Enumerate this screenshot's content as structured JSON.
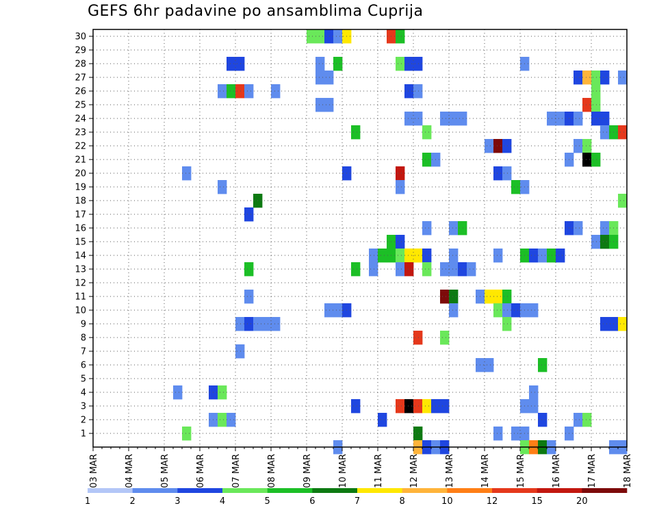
{
  "chart_data": {
    "type": "heatmap",
    "title": "GEFS 6hr padavine po ansamblima Cuprija",
    "xlabel": "",
    "ylabel": "",
    "x_ticks": [
      "03 MAR",
      "04 MAR",
      "05 MAR",
      "06 MAR",
      "07 MAR",
      "08 MAR",
      "09 MAR",
      "10 MAR",
      "11 MAR",
      "12 MAR",
      "13 MAR",
      "14 MAR",
      "15 MAR",
      "16 MAR",
      "17 MAR",
      "18 MAR"
    ],
    "y_ticks": [
      "1",
      "2",
      "3",
      "4",
      "5",
      "6",
      "7",
      "8",
      "9",
      "10",
      "11",
      "12",
      "13",
      "14",
      "15",
      "16",
      "17",
      "18",
      "19",
      "20",
      "21",
      "22",
      "23",
      "24",
      "25",
      "26",
      "27",
      "28",
      "29",
      "30"
    ],
    "xlim": [
      0,
      60
    ],
    "ylim": [
      0,
      30
    ],
    "grid": true,
    "legend": {
      "position": "bottom",
      "labels": [
        "1",
        "2",
        "3",
        "4",
        "5",
        "6",
        "7",
        "8",
        "10",
        "12",
        "15",
        "20"
      ],
      "colors": [
        "#b3c6f7",
        "#5f8cee",
        "#1f46e0",
        "#6ae85a",
        "#1cbf26",
        "#0d7a12",
        "#ffe800",
        "#ffb43a",
        "#ff7f16",
        "#e5381b",
        "#c2170f",
        "#7d0a0a"
      ]
    },
    "cells": [
      [
        24,
        30,
        3
      ],
      [
        25,
        30,
        3
      ],
      [
        26,
        30,
        2
      ],
      [
        27,
        30,
        1
      ],
      [
        28,
        30,
        6
      ],
      [
        33,
        30,
        9
      ],
      [
        34,
        30,
        4
      ],
      [
        15,
        28,
        2
      ],
      [
        16,
        28,
        2
      ],
      [
        25,
        28,
        1
      ],
      [
        27,
        28,
        4
      ],
      [
        34,
        28,
        3
      ],
      [
        35,
        28,
        2
      ],
      [
        36,
        28,
        2
      ],
      [
        48,
        28,
        1
      ],
      [
        25,
        27,
        1
      ],
      [
        26,
        27,
        1
      ],
      [
        54,
        27,
        2
      ],
      [
        55,
        27,
        7
      ],
      [
        56,
        27,
        3
      ],
      [
        57,
        27,
        2
      ],
      [
        59,
        27,
        1
      ],
      [
        14,
        26,
        1
      ],
      [
        15,
        26,
        4
      ],
      [
        16,
        26,
        9
      ],
      [
        17,
        26,
        1
      ],
      [
        20,
        26,
        1
      ],
      [
        35,
        26,
        2
      ],
      [
        36,
        26,
        1
      ],
      [
        56,
        26,
        3
      ],
      [
        25,
        25,
        1
      ],
      [
        26,
        25,
        1
      ],
      [
        55,
        25,
        9
      ],
      [
        56,
        25,
        3
      ],
      [
        35,
        24,
        1
      ],
      [
        36,
        24,
        1
      ],
      [
        39,
        24,
        1
      ],
      [
        40,
        24,
        1
      ],
      [
        41,
        24,
        1
      ],
      [
        51,
        24,
        1
      ],
      [
        52,
        24,
        1
      ],
      [
        53,
        24,
        2
      ],
      [
        54,
        24,
        1
      ],
      [
        56,
        24,
        2
      ],
      [
        57,
        24,
        2
      ],
      [
        29,
        23,
        4
      ],
      [
        37,
        23,
        3
      ],
      [
        57,
        23,
        1
      ],
      [
        58,
        23,
        4
      ],
      [
        59,
        23,
        9
      ],
      [
        44,
        22,
        1
      ],
      [
        45,
        22,
        11
      ],
      [
        46,
        22,
        2
      ],
      [
        54,
        22,
        1
      ],
      [
        55,
        22,
        3
      ],
      [
        37,
        21,
        4
      ],
      [
        38,
        21,
        1
      ],
      [
        53,
        21,
        1
      ],
      [
        55,
        21,
        12
      ],
      [
        56,
        21,
        4
      ],
      [
        10,
        20,
        1
      ],
      [
        28,
        20,
        2
      ],
      [
        34,
        20,
        10
      ],
      [
        45,
        20,
        2
      ],
      [
        46,
        20,
        1
      ],
      [
        14,
        19,
        1
      ],
      [
        34,
        19,
        1
      ],
      [
        47,
        19,
        4
      ],
      [
        48,
        19,
        1
      ],
      [
        18,
        18,
        5
      ],
      [
        59,
        18,
        3
      ],
      [
        17,
        17,
        2
      ],
      [
        37,
        16,
        1
      ],
      [
        40,
        16,
        1
      ],
      [
        41,
        16,
        4
      ],
      [
        53,
        16,
        2
      ],
      [
        54,
        16,
        1
      ],
      [
        57,
        16,
        1
      ],
      [
        58,
        16,
        3
      ],
      [
        33,
        15,
        4
      ],
      [
        34,
        15,
        2
      ],
      [
        56,
        15,
        1
      ],
      [
        57,
        15,
        5
      ],
      [
        58,
        15,
        4
      ],
      [
        31,
        14,
        1
      ],
      [
        32,
        14,
        4
      ],
      [
        33,
        14,
        4
      ],
      [
        34,
        14,
        3
      ],
      [
        35,
        14,
        6
      ],
      [
        36,
        14,
        6
      ],
      [
        37,
        14,
        2
      ],
      [
        40,
        14,
        1
      ],
      [
        45,
        14,
        1
      ],
      [
        48,
        14,
        4
      ],
      [
        49,
        14,
        2
      ],
      [
        50,
        14,
        1
      ],
      [
        51,
        14,
        4
      ],
      [
        52,
        14,
        2
      ],
      [
        17,
        13,
        4
      ],
      [
        29,
        13,
        4
      ],
      [
        31,
        13,
        1
      ],
      [
        34,
        13,
        1
      ],
      [
        35,
        13,
        10
      ],
      [
        37,
        13,
        3
      ],
      [
        39,
        13,
        1
      ],
      [
        40,
        13,
        1
      ],
      [
        41,
        13,
        2
      ],
      [
        42,
        13,
        1
      ],
      [
        39,
        11,
        11
      ],
      [
        40,
        11,
        5
      ],
      [
        43,
        11,
        1
      ],
      [
        44,
        11,
        6
      ],
      [
        45,
        11,
        6
      ],
      [
        46,
        11,
        4
      ],
      [
        17,
        11,
        1
      ],
      [
        26,
        10,
        1
      ],
      [
        27,
        10,
        1
      ],
      [
        28,
        10,
        2
      ],
      [
        40,
        10,
        1
      ],
      [
        45,
        10,
        3
      ],
      [
        46,
        10,
        1
      ],
      [
        47,
        10,
        2
      ],
      [
        48,
        10,
        1
      ],
      [
        49,
        10,
        1
      ],
      [
        16,
        9,
        1
      ],
      [
        17,
        9,
        2
      ],
      [
        18,
        9,
        1
      ],
      [
        19,
        9,
        1
      ],
      [
        20,
        9,
        1
      ],
      [
        46,
        9,
        3
      ],
      [
        57,
        9,
        2
      ],
      [
        58,
        9,
        2
      ],
      [
        59,
        9,
        6
      ],
      [
        36,
        8,
        9
      ],
      [
        39,
        8,
        3
      ],
      [
        16,
        7,
        1
      ],
      [
        43,
        6,
        1
      ],
      [
        44,
        6,
        1
      ],
      [
        50,
        6,
        4
      ],
      [
        9,
        4,
        1
      ],
      [
        13,
        4,
        2
      ],
      [
        14,
        4,
        3
      ],
      [
        49,
        4,
        1
      ],
      [
        29,
        3,
        2
      ],
      [
        34,
        3,
        9
      ],
      [
        35,
        3,
        12
      ],
      [
        36,
        3,
        9
      ],
      [
        37,
        3,
        6
      ],
      [
        38,
        3,
        2
      ],
      [
        39,
        3,
        2
      ],
      [
        48,
        3,
        1
      ],
      [
        49,
        3,
        1
      ],
      [
        13,
        2,
        1
      ],
      [
        14,
        2,
        3
      ],
      [
        15,
        2,
        1
      ],
      [
        32,
        2,
        2
      ],
      [
        50,
        2,
        2
      ],
      [
        54,
        2,
        1
      ],
      [
        55,
        2,
        3
      ],
      [
        10,
        1,
        3
      ],
      [
        36,
        1,
        5
      ],
      [
        45,
        1,
        1
      ],
      [
        47,
        1,
        1
      ],
      [
        48,
        1,
        1
      ],
      [
        53,
        1,
        1
      ],
      [
        27,
        0,
        1
      ],
      [
        36,
        0,
        7
      ],
      [
        37,
        0,
        2
      ],
      [
        38,
        0,
        1
      ],
      [
        39,
        0,
        2
      ],
      [
        48,
        0,
        3
      ],
      [
        49,
        0,
        8
      ],
      [
        50,
        0,
        5
      ],
      [
        51,
        0,
        1
      ],
      [
        58,
        0,
        1
      ],
      [
        59,
        0,
        1
      ]
    ]
  }
}
